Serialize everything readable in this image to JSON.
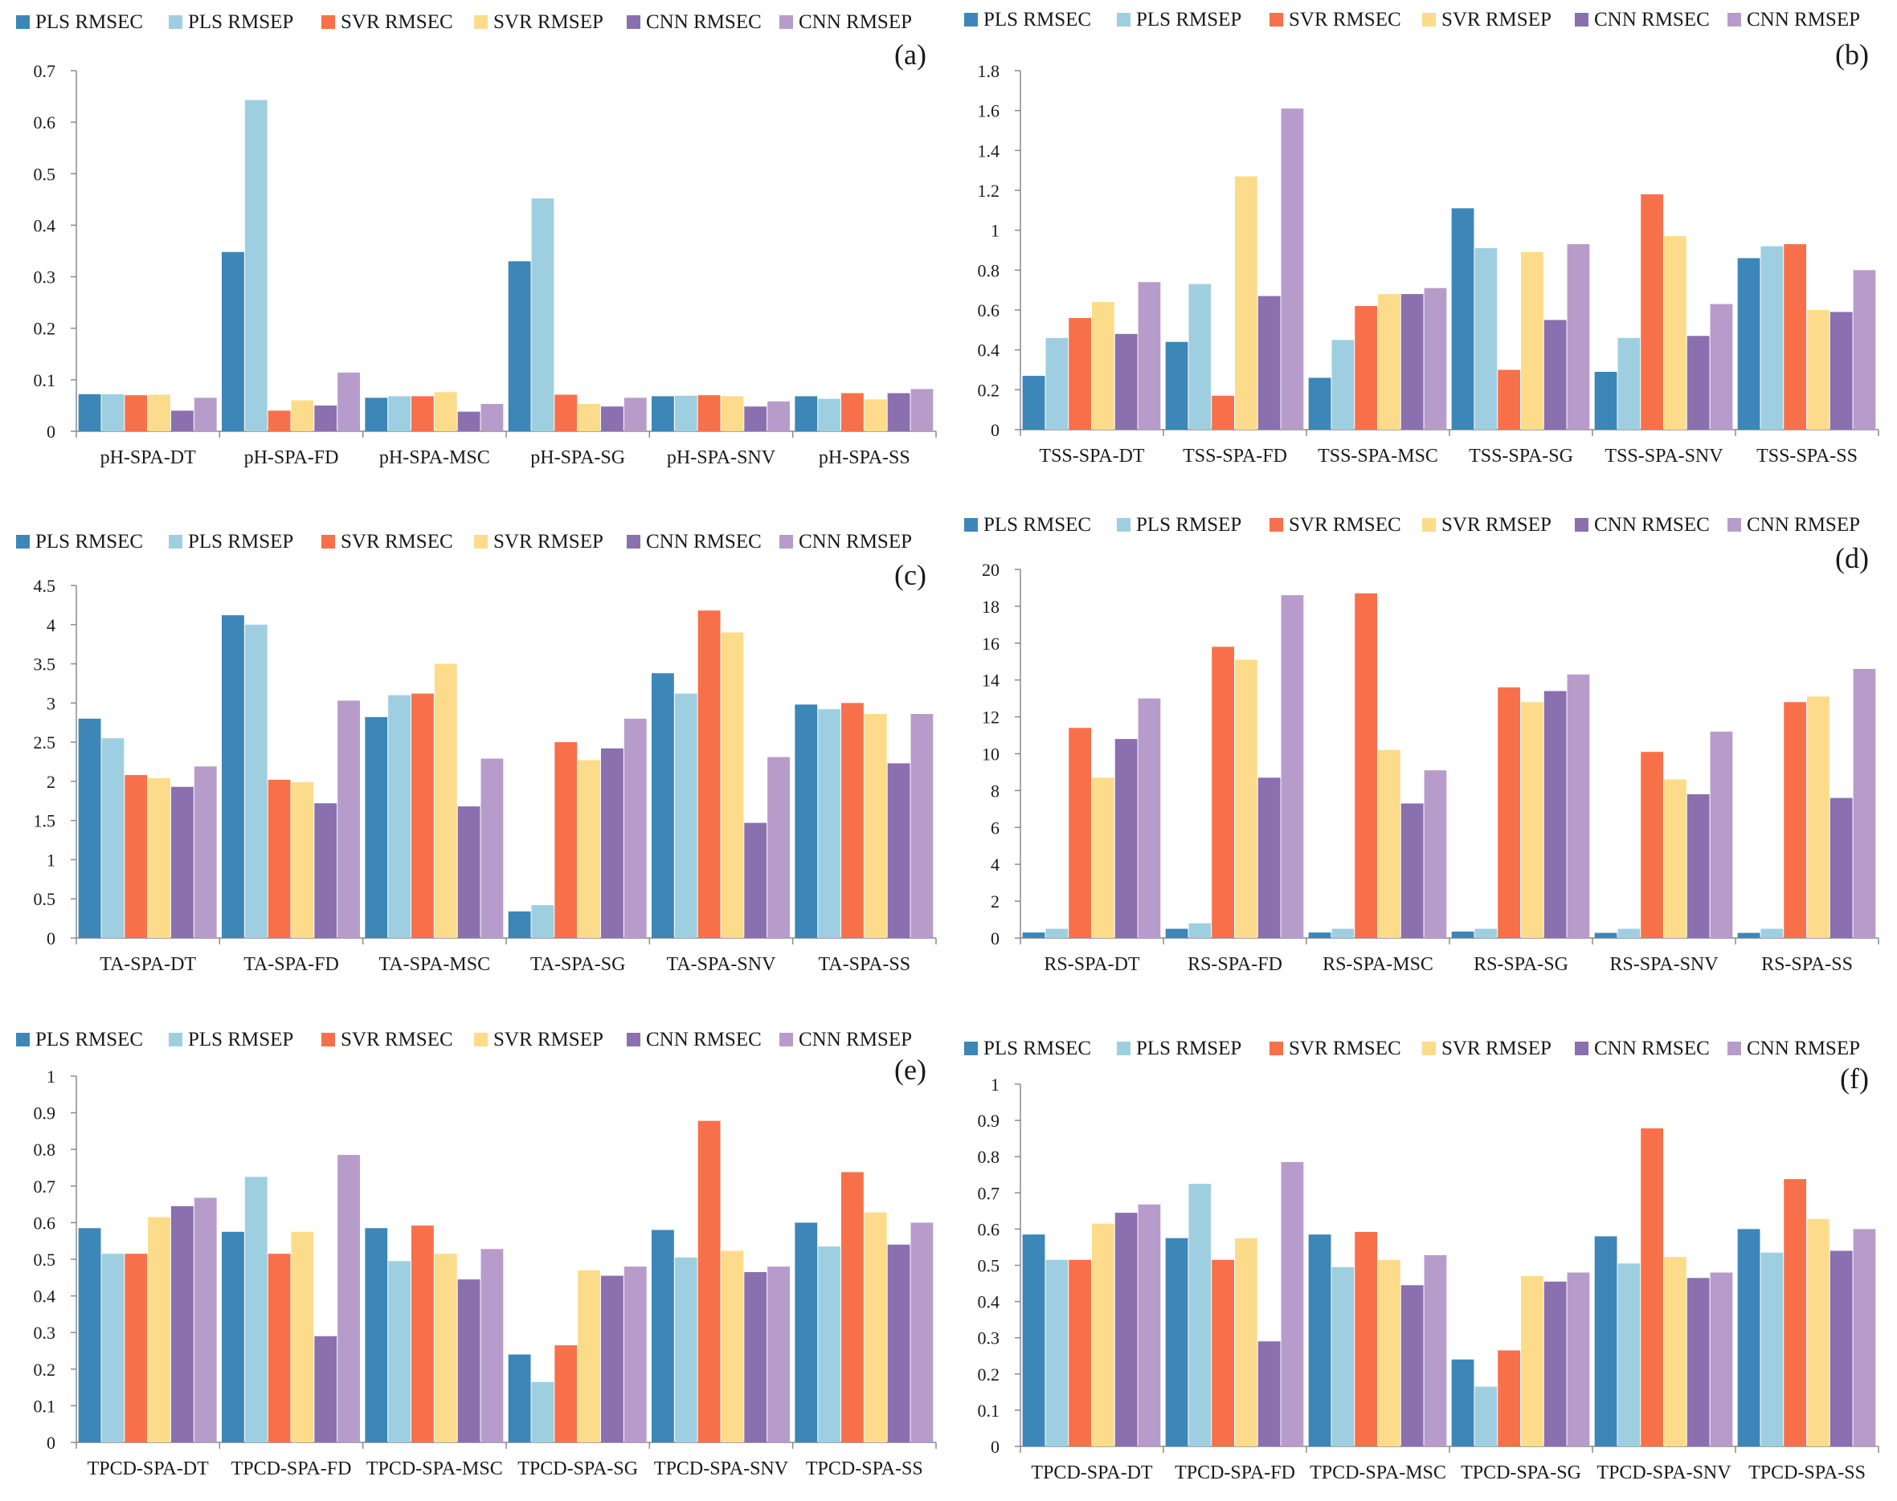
{
  "series_names": [
    "PLS RMSEC",
    "PLS RMSEP",
    "SVR RMSEC",
    "SVR RMSEP",
    "CNN RMSEC",
    "CNN RMSEP"
  ],
  "colors": {
    "pls_rmsec": "#3d86b8",
    "pls_rmsep": "#9ecfe1",
    "svr_rmsec": "#f7704a",
    "svr_rmsep": "#fcdc8a",
    "cnn_rmsec": "#8a70ae",
    "cnn_rmsep": "#b79ccb",
    "axis": "#8c8c8c",
    "text": "#1a1a1a"
  },
  "chart_data": [
    {
      "type": "bar",
      "panel_label": "(a)",
      "title": "",
      "xlabel": "",
      "ylabel": "",
      "legend": "top",
      "grid": false,
      "ylim": [
        0,
        0.7
      ],
      "yticks": [
        "0",
        "0.1",
        "0.2",
        "0.3",
        "0.4",
        "0.5",
        "0.6",
        "0.7"
      ],
      "categories": [
        "pH-SPA-DT",
        "pH-SPA-FD",
        "pH-SPA-MSC",
        "pH-SPA-SG",
        "pH-SPA-SNV",
        "pH-SPA-SS"
      ],
      "series": [
        {
          "name": "PLS RMSEC",
          "values": [
            0.072,
            0.348,
            0.065,
            0.33,
            0.068,
            0.068
          ]
        },
        {
          "name": "PLS RMSEP",
          "values": [
            0.072,
            0.643,
            0.068,
            0.452,
            0.069,
            0.063
          ]
        },
        {
          "name": "SVR RMSEC",
          "values": [
            0.07,
            0.04,
            0.068,
            0.071,
            0.07,
            0.074
          ]
        },
        {
          "name": "SVR RMSEP",
          "values": [
            0.071,
            0.06,
            0.076,
            0.053,
            0.068,
            0.062
          ]
        },
        {
          "name": "CNN RMSEC",
          "values": [
            0.04,
            0.05,
            0.038,
            0.048,
            0.048,
            0.074
          ]
        },
        {
          "name": "CNN RMSEP",
          "values": [
            0.065,
            0.114,
            0.053,
            0.065,
            0.058,
            0.082
          ]
        }
      ]
    },
    {
      "type": "bar",
      "panel_label": "(b)",
      "title": "",
      "xlabel": "",
      "ylabel": "",
      "legend": "top",
      "grid": false,
      "ylim": [
        0,
        1.8
      ],
      "yticks": [
        "0",
        "0.2",
        "0.4",
        "0.6",
        "0.8",
        "1",
        "1.2",
        "1.4",
        "1.6",
        "1.8"
      ],
      "categories": [
        "TSS-SPA-DT",
        "TSS-SPA-FD",
        "TSS-SPA-MSC",
        "TSS-SPA-SG",
        "TSS-SPA-SNV",
        "TSS-SPA-SS"
      ],
      "series": [
        {
          "name": "PLS RMSEC",
          "values": [
            0.27,
            0.44,
            0.26,
            1.11,
            0.29,
            0.86
          ]
        },
        {
          "name": "PLS RMSEP",
          "values": [
            0.46,
            0.73,
            0.45,
            0.91,
            0.46,
            0.92
          ]
        },
        {
          "name": "SVR RMSEC",
          "values": [
            0.56,
            0.17,
            0.62,
            0.3,
            1.18,
            0.93
          ]
        },
        {
          "name": "SVR RMSEP",
          "values": [
            0.64,
            1.27,
            0.68,
            0.89,
            0.97,
            0.6
          ]
        },
        {
          "name": "CNN RMSEC",
          "values": [
            0.48,
            0.67,
            0.68,
            0.55,
            0.47,
            0.59
          ]
        },
        {
          "name": "CNN RMSEP",
          "values": [
            0.74,
            1.61,
            0.71,
            0.93,
            0.63,
            0.8
          ]
        }
      ]
    },
    {
      "type": "bar",
      "panel_label": "(c)",
      "title": "",
      "xlabel": "",
      "ylabel": "",
      "legend": "top",
      "grid": false,
      "ylim": [
        0,
        4.5
      ],
      "yticks": [
        "0",
        "0.5",
        "1",
        "1.5",
        "2",
        "2.5",
        "3",
        "3.5",
        "4",
        "4.5"
      ],
      "categories": [
        "TA-SPA-DT",
        "TA-SPA-FD",
        "TA-SPA-MSC",
        "TA-SPA-SG",
        "TA-SPA-SNV",
        "TA-SPA-SS"
      ],
      "series": [
        {
          "name": "PLS RMSEC",
          "values": [
            2.8,
            4.12,
            2.82,
            0.34,
            3.38,
            2.98
          ]
        },
        {
          "name": "PLS RMSEP",
          "values": [
            2.55,
            4.0,
            3.1,
            0.42,
            3.12,
            2.92
          ]
        },
        {
          "name": "SVR RMSEC",
          "values": [
            2.08,
            2.02,
            3.12,
            2.5,
            4.18,
            3.0
          ]
        },
        {
          "name": "SVR RMSEP",
          "values": [
            2.04,
            1.99,
            3.5,
            2.27,
            3.9,
            2.86
          ]
        },
        {
          "name": "CNN RMSEC",
          "values": [
            1.93,
            1.72,
            1.68,
            2.42,
            1.47,
            2.23
          ]
        },
        {
          "name": "CNN RMSEP",
          "values": [
            2.19,
            3.03,
            2.29,
            2.8,
            2.31,
            2.86
          ]
        }
      ]
    },
    {
      "type": "bar",
      "panel_label": "(d)",
      "title": "",
      "xlabel": "",
      "ylabel": "",
      "legend": "top",
      "grid": false,
      "ylim": [
        0,
        20
      ],
      "yticks": [
        "0",
        "2",
        "4",
        "6",
        "8",
        "10",
        "12",
        "14",
        "16",
        "18",
        "20"
      ],
      "categories": [
        "RS-SPA-DT",
        "RS-SPA-FD",
        "RS-SPA-MSC",
        "RS-SPA-SG",
        "RS-SPA-SNV",
        "RS-SPA-SS"
      ],
      "series": [
        {
          "name": "PLS RMSEC",
          "values": [
            0.3,
            0.5,
            0.3,
            0.35,
            0.28,
            0.28
          ]
        },
        {
          "name": "PLS RMSEP",
          "values": [
            0.5,
            0.8,
            0.5,
            0.5,
            0.5,
            0.5
          ]
        },
        {
          "name": "SVR RMSEC",
          "values": [
            11.4,
            15.8,
            18.7,
            13.6,
            10.1,
            12.8
          ]
        },
        {
          "name": "SVR RMSEP",
          "values": [
            8.7,
            15.1,
            10.2,
            12.8,
            8.6,
            13.1
          ]
        },
        {
          "name": "CNN RMSEC",
          "values": [
            10.8,
            8.7,
            7.3,
            13.4,
            7.8,
            7.6
          ]
        },
        {
          "name": "CNN RMSEP",
          "values": [
            13.0,
            18.6,
            9.1,
            14.3,
            11.2,
            14.6
          ]
        }
      ]
    },
    {
      "type": "bar",
      "panel_label": "(e)",
      "title": "",
      "xlabel": "",
      "ylabel": "",
      "legend": "top",
      "grid": false,
      "ylim": [
        0,
        1
      ],
      "yticks": [
        "0",
        "0.1",
        "0.2",
        "0.3",
        "0.4",
        "0.5",
        "0.6",
        "0.7",
        "0.8",
        "0.9",
        "1"
      ],
      "categories": [
        "TPCD-SPA-DT",
        "TPCD-SPA-FD",
        "TPCD-SPA-MSC",
        "TPCD-SPA-SG",
        "TPCD-SPA-SNV",
        "TPCD-SPA-SS"
      ],
      "series": [
        {
          "name": "PLS RMSEC",
          "values": [
            0.585,
            0.575,
            0.585,
            0.24,
            0.58,
            0.6
          ]
        },
        {
          "name": "PLS RMSEP",
          "values": [
            0.515,
            0.725,
            0.495,
            0.165,
            0.505,
            0.535
          ]
        },
        {
          "name": "SVR RMSEC",
          "values": [
            0.515,
            0.515,
            0.592,
            0.265,
            0.878,
            0.738
          ]
        },
        {
          "name": "SVR RMSEP",
          "values": [
            0.615,
            0.575,
            0.515,
            0.47,
            0.523,
            0.628
          ]
        },
        {
          "name": "CNN RMSEC",
          "values": [
            0.645,
            0.29,
            0.445,
            0.455,
            0.465,
            0.54
          ]
        },
        {
          "name": "CNN RMSEP",
          "values": [
            0.668,
            0.785,
            0.528,
            0.48,
            0.48,
            0.6
          ]
        }
      ]
    },
    {
      "type": "bar",
      "panel_label": "(f)",
      "title": "",
      "xlabel": "",
      "ylabel": "",
      "legend": "top",
      "grid": false,
      "ylim": [
        0,
        1
      ],
      "yticks": [
        "0",
        "0.1",
        "0.2",
        "0.3",
        "0.4",
        "0.5",
        "0.6",
        "0.7",
        "0.8",
        "0.9",
        "1"
      ],
      "categories": [
        "TPCD-SPA-DT",
        "TPCD-SPA-FD",
        "TPCD-SPA-MSC",
        "TPCD-SPA-SG",
        "TPCD-SPA-SNV",
        "TPCD-SPA-SS"
      ],
      "series": [
        {
          "name": "PLS RMSEC",
          "values": [
            0.585,
            0.575,
            0.585,
            0.24,
            0.58,
            0.6
          ]
        },
        {
          "name": "PLS RMSEP",
          "values": [
            0.515,
            0.725,
            0.495,
            0.165,
            0.505,
            0.535
          ]
        },
        {
          "name": "SVR RMSEC",
          "values": [
            0.515,
            0.515,
            0.592,
            0.265,
            0.878,
            0.738
          ]
        },
        {
          "name": "SVR RMSEP",
          "values": [
            0.615,
            0.575,
            0.515,
            0.47,
            0.523,
            0.628
          ]
        },
        {
          "name": "CNN RMSEC",
          "values": [
            0.645,
            0.29,
            0.445,
            0.455,
            0.465,
            0.54
          ]
        },
        {
          "name": "CNN RMSEP",
          "values": [
            0.668,
            0.785,
            0.528,
            0.48,
            0.48,
            0.6
          ]
        }
      ]
    }
  ]
}
